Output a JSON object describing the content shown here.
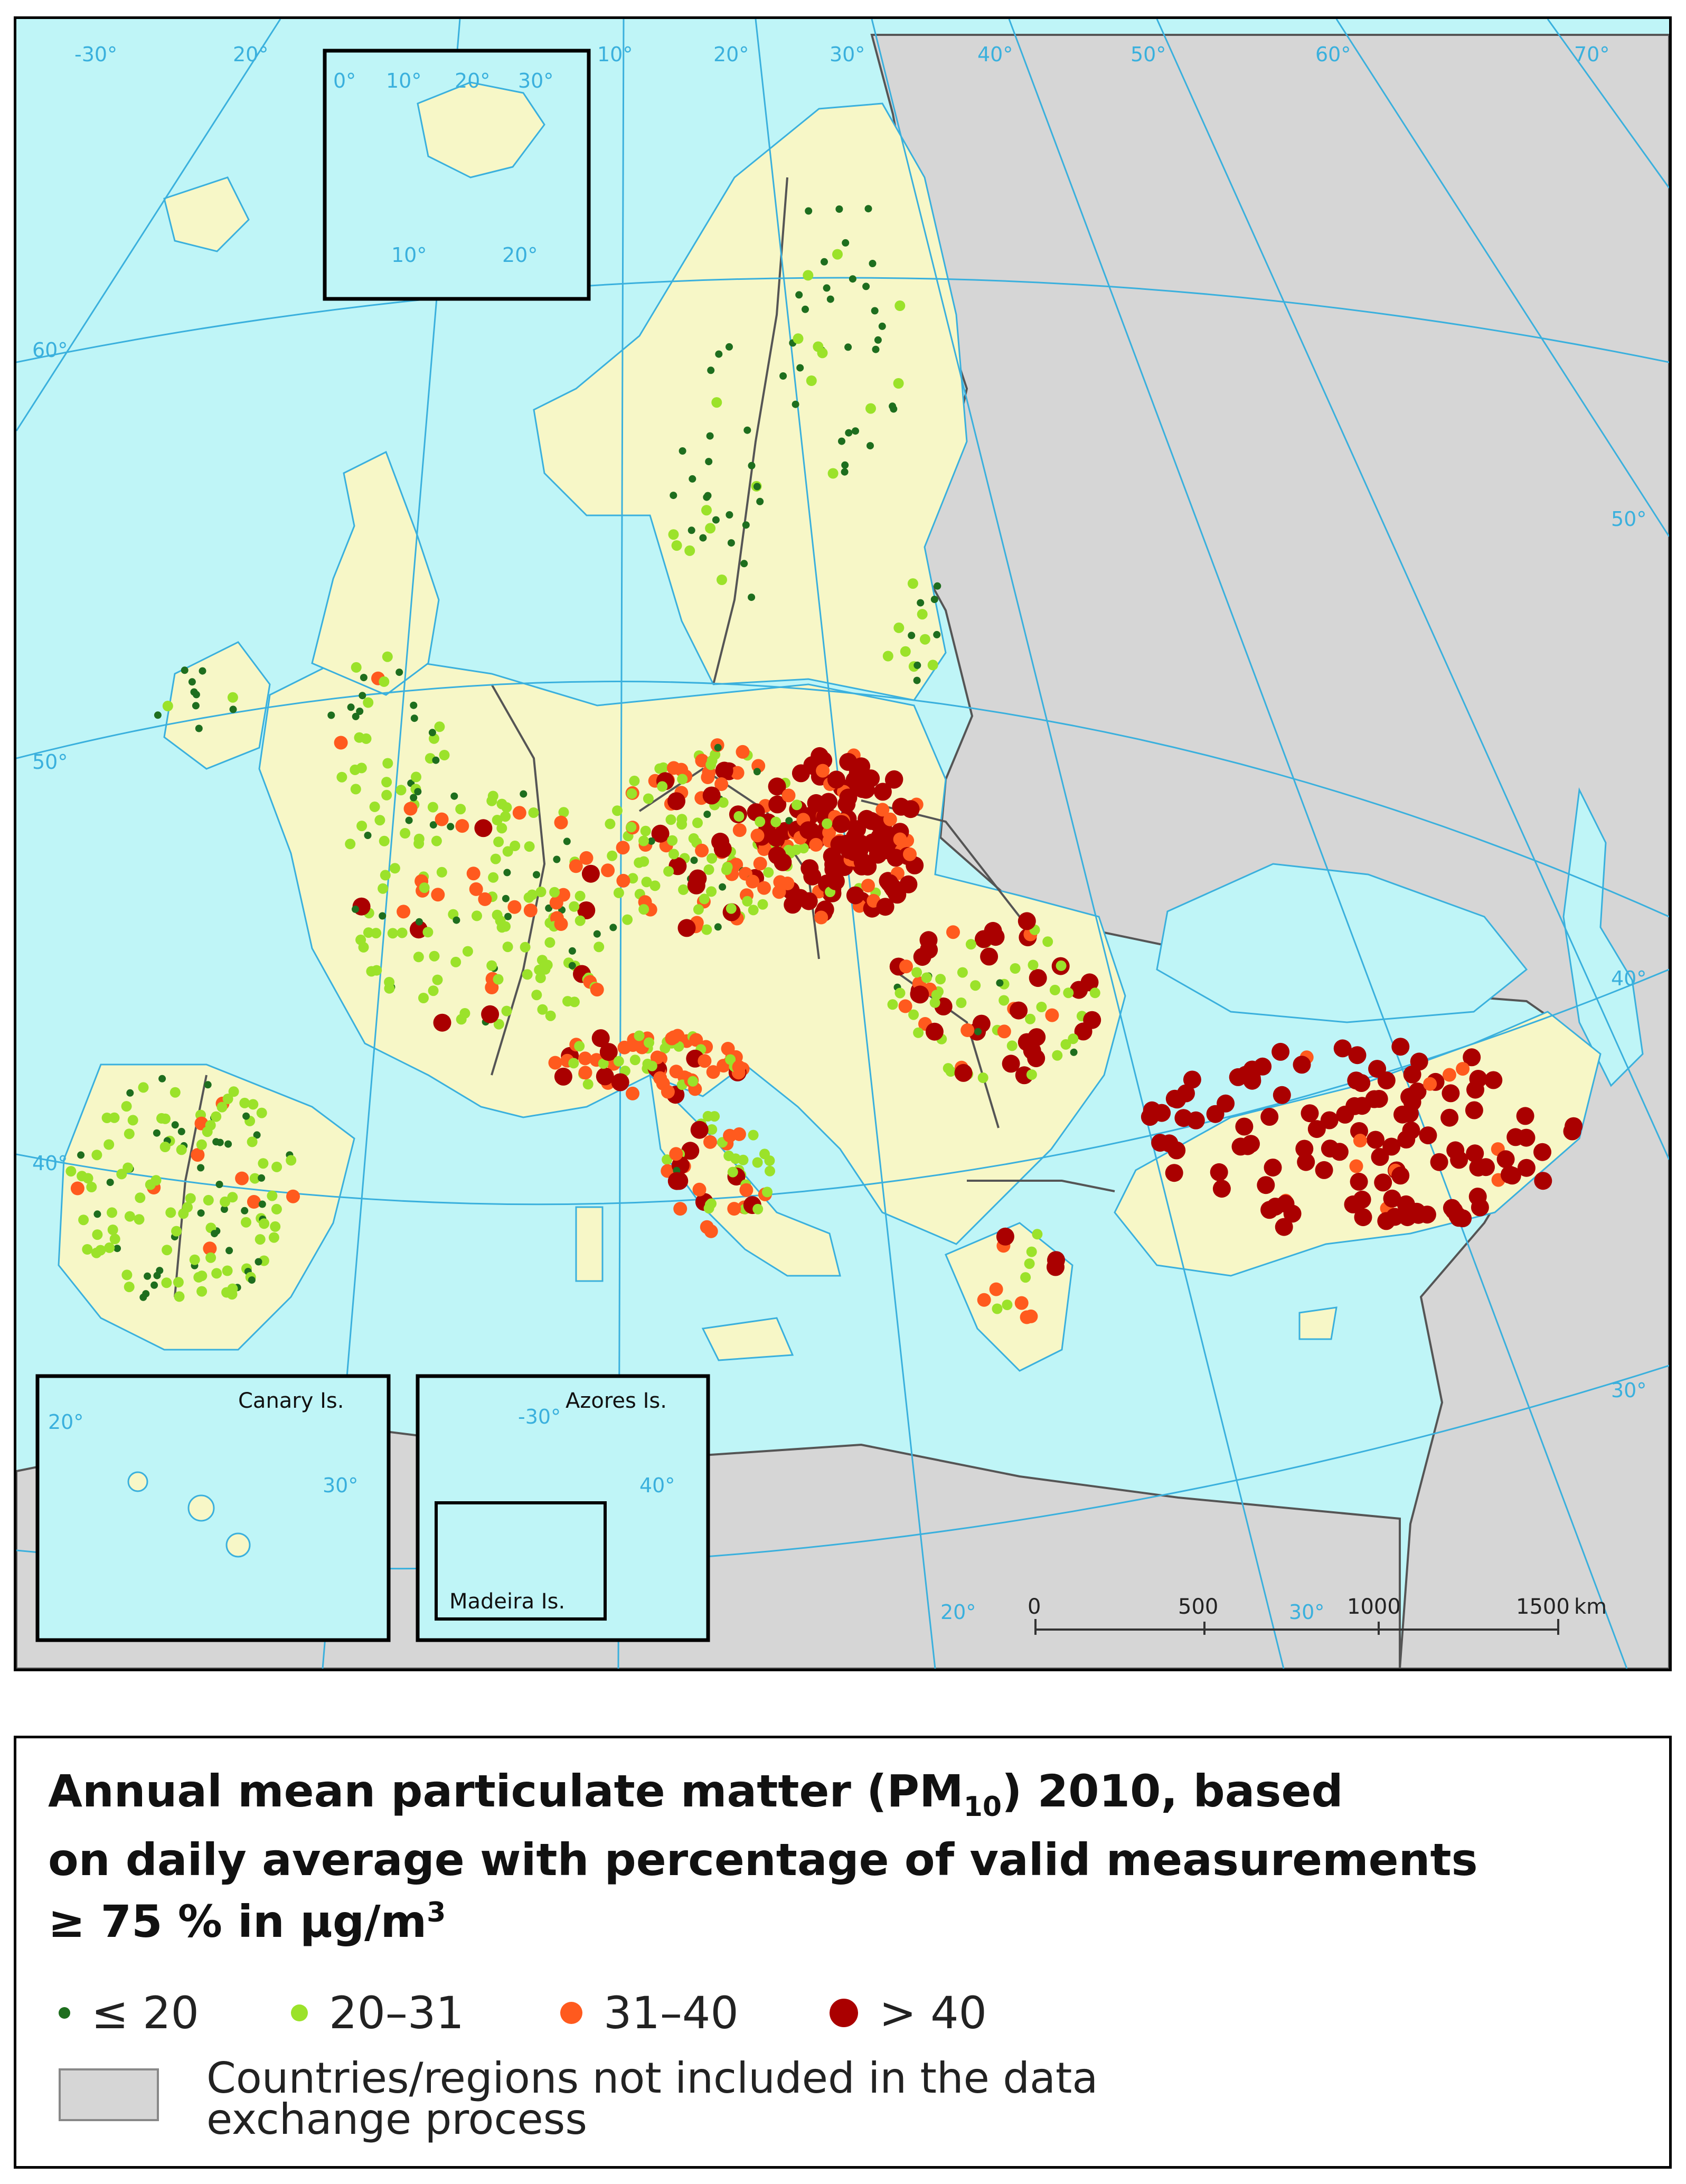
{
  "map": {
    "graticule_labels": {
      "top": [
        "-30°",
        "20°",
        "10°",
        "20°",
        "30°",
        "40°",
        "50°",
        "60°",
        "70°"
      ],
      "left": [
        "60°",
        "50°",
        "40°"
      ],
      "right": [
        "50°",
        "40°",
        "30°"
      ],
      "bottom": [
        "20°",
        "30°"
      ],
      "svalbard_inset": [
        "0°",
        "10°",
        "20°",
        "30°",
        "10°",
        "20°"
      ]
    },
    "insets": {
      "canary": {
        "name": "Canary Is.",
        "lon_labels": [
          "20°",
          "30°"
        ]
      },
      "azores": {
        "name": "Azores Is.",
        "lon_labels": [
          "-30°",
          "40°"
        ]
      },
      "madeira": {
        "name": "Madeira Is."
      }
    },
    "scale_bar": {
      "ticks": [
        "0",
        "500",
        "1000",
        "1500"
      ],
      "unit": "km"
    },
    "colors": {
      "sea": "#bff5f7",
      "included_land": "#f7f7c7",
      "excluded_land": "#d6d6d6",
      "borders": "#555555"
    }
  },
  "legend": {
    "title_line1_a": "Annual mean particulate matter (PM",
    "title_sub": "10",
    "title_line1_b": ") 2010, based",
    "title_line2": "on daily average with percentage of valid measurements",
    "title_line3_a": "≥ 75 % in µg/m",
    "title_sup": "3",
    "classes": [
      {
        "label": "≤ 20",
        "color": "#1e6e1e"
      },
      {
        "label": "20–31",
        "color": "#9be22a"
      },
      {
        "label": "31–40",
        "color": "#ff5a1e"
      },
      {
        "label": "> 40",
        "color": "#aa0000"
      }
    ],
    "not_included_line1": "Countries/regions not included in the data",
    "not_included_line2": "exchange process"
  }
}
